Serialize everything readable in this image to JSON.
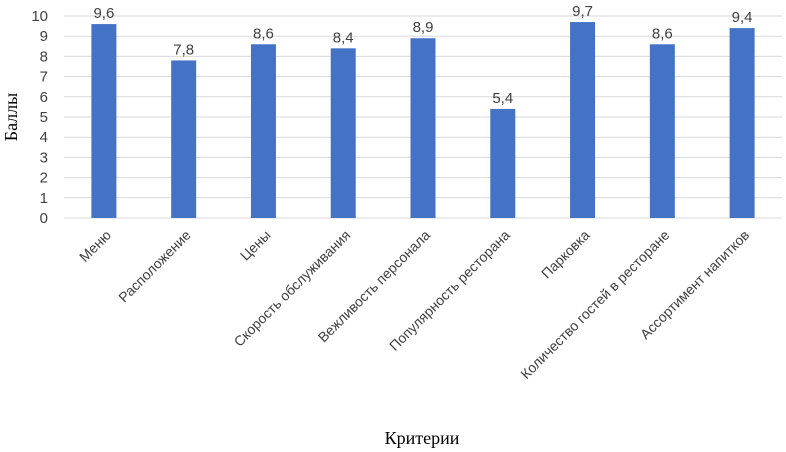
{
  "colors": {
    "bar": "#4472C4",
    "grid": "#D9D9D9",
    "text": "#404040"
  },
  "chart_data": {
    "type": "bar",
    "title": "",
    "xlabel": "Критерии",
    "ylabel": "Баллы",
    "ylim": [
      0,
      10
    ],
    "ytick_step": 1,
    "yticks": [
      "0",
      "1",
      "2",
      "3",
      "4",
      "5",
      "6",
      "7",
      "8",
      "9",
      "10"
    ],
    "grid": true,
    "legend": "none",
    "categories": [
      "Меню",
      "Расположение",
      "Цены",
      "Скорость обслуживания",
      "Вежливость персонала",
      "Популярность ресторана",
      "Парковка",
      "Количество гостей в ресторане",
      "Ассортимент напитков"
    ],
    "values": [
      9.6,
      7.8,
      8.6,
      8.4,
      8.9,
      5.4,
      9.7,
      8.6,
      9.4
    ],
    "data_labels": [
      "9,6",
      "7,8",
      "8,6",
      "8,4",
      "8,9",
      "5,4",
      "9,7",
      "8,6",
      "9,4"
    ]
  }
}
